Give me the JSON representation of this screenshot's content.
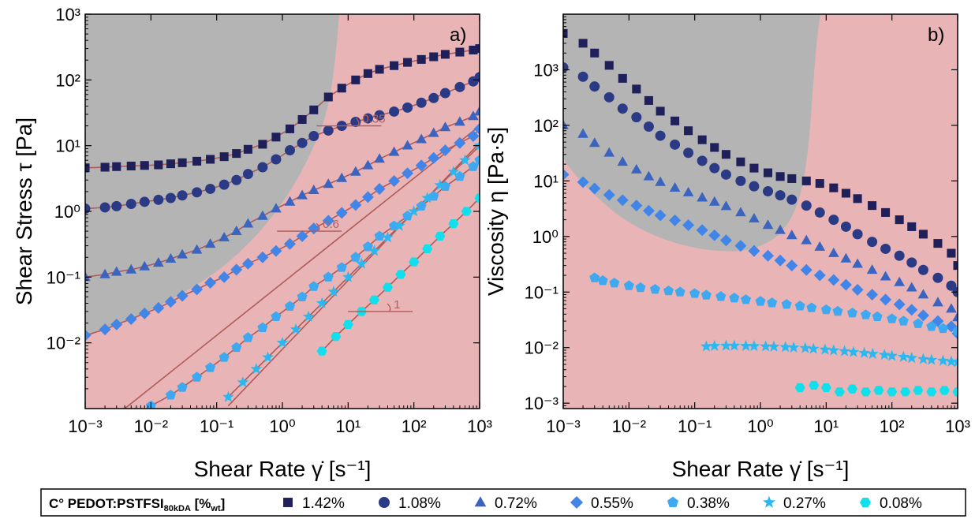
{
  "chart_data": [
    {
      "type": "scatter",
      "panel_label": "a)",
      "xlabel": "Shear Rate γ̇ [s⁻¹]",
      "ylabel": "Shear Stress τ [Pa]",
      "xscale": "log",
      "yscale": "log",
      "xlim": [
        0.001,
        1000
      ],
      "ylim": [
        0.001,
        1000
      ],
      "x_ticks": [
        "10⁻³",
        "10⁻²",
        "10⁻¹",
        "10⁰",
        "10¹",
        "10²",
        "10³"
      ],
      "y_ticks": [
        "10⁻²",
        "10⁻¹",
        "10⁰",
        "10¹",
        "10²",
        "10³"
      ],
      "annotations": [
        {
          "text": "0.35",
          "x": 10,
          "y": 20
        },
        {
          "text": "0.6",
          "x": 2.5,
          "y": 0.5
        },
        {
          "text": "1",
          "x": 30,
          "y": 0.03
        }
      ],
      "series": [
        {
          "name": "1.42%",
          "marker": "square",
          "color": "#1f1f5a",
          "x": [
            0.001,
            0.002,
            0.003,
            0.005,
            0.008,
            0.013,
            0.02,
            0.03,
            0.05,
            0.08,
            0.13,
            0.2,
            0.3,
            0.5,
            0.8,
            1.3,
            2,
            3,
            5,
            8,
            13,
            20,
            30,
            50,
            80,
            130,
            200,
            300,
            500,
            800,
            1000
          ],
          "y": [
            4.6,
            4.7,
            4.8,
            4.9,
            5.0,
            5.1,
            5.3,
            5.5,
            5.8,
            6.2,
            6.8,
            7.6,
            8.8,
            10.5,
            13.5,
            18,
            25,
            35,
            55,
            75,
            100,
            125,
            145,
            165,
            185,
            205,
            225,
            245,
            265,
            285,
            300
          ]
        },
        {
          "name": "1.08%",
          "marker": "circle",
          "color": "#2b3a84",
          "x": [
            0.001,
            0.002,
            0.003,
            0.005,
            0.008,
            0.013,
            0.02,
            0.03,
            0.05,
            0.08,
            0.13,
            0.2,
            0.3,
            0.5,
            0.8,
            1.3,
            2,
            3,
            5,
            8,
            13,
            20,
            30,
            50,
            80,
            130,
            200,
            300,
            500,
            800,
            1000
          ],
          "y": [
            1.1,
            1.15,
            1.2,
            1.3,
            1.4,
            1.5,
            1.6,
            1.75,
            1.95,
            2.2,
            2.55,
            3.0,
            3.7,
            4.7,
            6.2,
            8.5,
            11,
            14,
            17,
            20,
            23,
            26,
            29,
            33,
            38,
            45,
            53,
            63,
            78,
            95,
            110
          ]
        },
        {
          "name": "0.72%",
          "marker": "triangle",
          "color": "#3a64c0",
          "x": [
            0.001,
            0.002,
            0.003,
            0.005,
            0.008,
            0.013,
            0.02,
            0.03,
            0.05,
            0.08,
            0.13,
            0.2,
            0.3,
            0.5,
            0.8,
            1.3,
            2,
            3,
            5,
            8,
            13,
            20,
            30,
            50,
            80,
            130,
            200,
            300,
            500,
            800,
            1000
          ],
          "y": [
            0.1,
            0.11,
            0.12,
            0.13,
            0.145,
            0.165,
            0.19,
            0.22,
            0.26,
            0.32,
            0.4,
            0.5,
            0.65,
            0.85,
            1.1,
            1.4,
            1.75,
            2.1,
            2.6,
            3.2,
            4.0,
            5.0,
            6.3,
            8.0,
            10,
            12.5,
            15.5,
            19,
            23,
            28,
            33
          ]
        },
        {
          "name": "0.55%",
          "marker": "diamond",
          "color": "#4285e8",
          "x": [
            0.001,
            0.002,
            0.003,
            0.005,
            0.008,
            0.013,
            0.02,
            0.03,
            0.05,
            0.08,
            0.13,
            0.2,
            0.3,
            0.5,
            0.8,
            1.3,
            2,
            3,
            5,
            8,
            13,
            20,
            30,
            50,
            80,
            130,
            200,
            300,
            500,
            800,
            1000
          ],
          "y": [
            0.013,
            0.016,
            0.019,
            0.023,
            0.028,
            0.034,
            0.042,
            0.052,
            0.065,
            0.082,
            0.1,
            0.13,
            0.16,
            0.2,
            0.25,
            0.32,
            0.42,
            0.55,
            0.72,
            0.95,
            1.25,
            1.65,
            2.2,
            2.9,
            3.8,
            5.0,
            6.5,
            8.5,
            11,
            14,
            18
          ]
        },
        {
          "name": "0.38%",
          "marker": "pentagon",
          "color": "#3ea8f0",
          "x": [
            0.01,
            0.02,
            0.03,
            0.05,
            0.08,
            0.13,
            0.2,
            0.3,
            0.5,
            0.8,
            1.3,
            2,
            3,
            5,
            8,
            13,
            20,
            30,
            50,
            80,
            130,
            200,
            300,
            500,
            800,
            1000
          ],
          "y": [
            0.0011,
            0.0016,
            0.0021,
            0.003,
            0.0042,
            0.006,
            0.0085,
            0.012,
            0.017,
            0.025,
            0.036,
            0.05,
            0.072,
            0.1,
            0.14,
            0.2,
            0.29,
            0.42,
            0.6,
            0.85,
            1.2,
            1.7,
            2.4,
            3.4,
            4.8,
            6.0
          ]
        },
        {
          "name": "0.27%",
          "marker": "star",
          "color": "#2bb8f0",
          "x": [
            0.15,
            0.25,
            0.4,
            0.6,
            1,
            1.6,
            2.5,
            4,
            6,
            10,
            16,
            25,
            40,
            60,
            100,
            160,
            250,
            400,
            600,
            1000
          ],
          "y": [
            0.0015,
            0.0025,
            0.004,
            0.006,
            0.01,
            0.016,
            0.025,
            0.04,
            0.06,
            0.1,
            0.16,
            0.25,
            0.4,
            0.6,
            1.0,
            1.6,
            2.5,
            4.0,
            6.0,
            10
          ]
        },
        {
          "name": "0.08%",
          "marker": "hexagon",
          "color": "#11e0ec",
          "x": [
            4,
            6.5,
            10,
            16,
            25,
            40,
            63,
            100,
            160,
            250,
            400,
            630,
            1000
          ],
          "y": [
            0.0075,
            0.0125,
            0.019,
            0.03,
            0.045,
            0.07,
            0.11,
            0.17,
            0.27,
            0.42,
            0.65,
            1.0,
            1.6
          ]
        }
      ]
    },
    {
      "type": "scatter",
      "panel_label": "b)",
      "xlabel": "Shear Rate γ̇ [s⁻¹]",
      "ylabel": "Viscosity η [Pa·s]",
      "xscale": "log",
      "yscale": "log",
      "xlim": [
        0.001,
        1000
      ],
      "ylim": [
        0.0008,
        10000
      ],
      "x_ticks": [
        "10⁻³",
        "10⁻²",
        "10⁻¹",
        "10⁰",
        "10¹",
        "10²",
        "10³"
      ],
      "y_ticks": [
        "10⁻³",
        "10⁻²",
        "10⁻¹",
        "10⁰",
        "10¹",
        "10²",
        "10³"
      ],
      "series": [
        {
          "name": "1.42%",
          "marker": "square",
          "color": "#1f1f5a",
          "x": [
            0.001,
            0.002,
            0.003,
            0.005,
            0.008,
            0.013,
            0.02,
            0.03,
            0.05,
            0.08,
            0.13,
            0.2,
            0.3,
            0.5,
            0.8,
            1.3,
            2,
            3,
            5,
            8,
            13,
            20,
            30,
            50,
            80,
            130,
            200,
            300,
            500,
            800,
            1000
          ],
          "y": [
            4500,
            3000,
            2000,
            1200,
            700,
            450,
            280,
            180,
            120,
            80,
            55,
            40,
            30,
            22,
            17,
            14,
            12,
            11,
            10,
            9,
            7.5,
            6,
            4.8,
            3.6,
            2.7,
            2.0,
            1.5,
            1.1,
            0.75,
            0.5,
            0.3
          ]
        },
        {
          "name": "1.08%",
          "marker": "circle",
          "color": "#2b3a84",
          "x": [
            0.001,
            0.002,
            0.003,
            0.005,
            0.008,
            0.013,
            0.02,
            0.03,
            0.05,
            0.08,
            0.13,
            0.2,
            0.3,
            0.5,
            0.8,
            1.3,
            2,
            3,
            5,
            8,
            13,
            20,
            30,
            50,
            80,
            130,
            200,
            300,
            500,
            800,
            1000
          ],
          "y": [
            1100,
            750,
            500,
            320,
            200,
            140,
            95,
            65,
            45,
            32,
            23,
            17,
            13,
            10,
            8,
            6.5,
            5.5,
            4.6,
            3.6,
            2.7,
            2.0,
            1.5,
            1.1,
            0.8,
            0.6,
            0.45,
            0.34,
            0.25,
            0.18,
            0.13,
            0.1
          ]
        },
        {
          "name": "0.72%",
          "marker": "triangle",
          "color": "#3a64c0",
          "x": [
            0.001,
            0.002,
            0.003,
            0.005,
            0.008,
            0.013,
            0.02,
            0.03,
            0.05,
            0.08,
            0.13,
            0.2,
            0.3,
            0.5,
            0.8,
            1.3,
            2,
            3,
            5,
            8,
            13,
            20,
            30,
            50,
            80,
            130,
            200,
            300,
            500,
            800,
            1000
          ],
          "y": [
            100,
            70,
            48,
            32,
            22,
            16,
            12,
            9.5,
            7.5,
            6.2,
            5.0,
            4.2,
            3.5,
            2.7,
            2.1,
            1.6,
            1.3,
            1.05,
            0.85,
            0.65,
            0.5,
            0.4,
            0.32,
            0.25,
            0.19,
            0.15,
            0.12,
            0.09,
            0.065,
            0.05,
            0.035
          ]
        },
        {
          "name": "0.55%",
          "marker": "diamond",
          "color": "#4285e8",
          "x": [
            0.001,
            0.002,
            0.003,
            0.005,
            0.008,
            0.013,
            0.02,
            0.03,
            0.05,
            0.08,
            0.13,
            0.2,
            0.3,
            0.5,
            0.8,
            1.3,
            2,
            3,
            5,
            8,
            13,
            20,
            30,
            50,
            80,
            130,
            200,
            300,
            500,
            800,
            1000
          ],
          "y": [
            13,
            9.5,
            7.3,
            5.6,
            4.5,
            3.6,
            2.9,
            2.4,
            1.95,
            1.6,
            1.3,
            1.05,
            0.85,
            0.68,
            0.55,
            0.45,
            0.37,
            0.3,
            0.25,
            0.2,
            0.165,
            0.135,
            0.11,
            0.09,
            0.073,
            0.06,
            0.048,
            0.038,
            0.03,
            0.024,
            0.018
          ]
        },
        {
          "name": "0.38%",
          "marker": "pentagon",
          "color": "#3ea8f0",
          "x": [
            0.003,
            0.004,
            0.006,
            0.01,
            0.015,
            0.025,
            0.04,
            0.06,
            0.1,
            0.15,
            0.25,
            0.4,
            0.6,
            1,
            1.5,
            2.5,
            4,
            6,
            10,
            15,
            25,
            40,
            60,
            100,
            150,
            250,
            400,
            600,
            1000
          ],
          "y": [
            0.18,
            0.16,
            0.145,
            0.13,
            0.12,
            0.112,
            0.105,
            0.1,
            0.094,
            0.088,
            0.083,
            0.078,
            0.073,
            0.068,
            0.064,
            0.06,
            0.056,
            0.052,
            0.048,
            0.045,
            0.042,
            0.039,
            0.036,
            0.033,
            0.03,
            0.027,
            0.024,
            0.022,
            0.02
          ]
        },
        {
          "name": "0.27%",
          "marker": "star",
          "color": "#2bb8f0",
          "x": [
            0.15,
            0.2,
            0.3,
            0.4,
            0.6,
            0.8,
            1.2,
            1.6,
            2.4,
            3.2,
            4.8,
            6.4,
            9.6,
            13,
            19,
            26,
            38,
            51,
            77,
            100,
            150,
            200,
            300,
            400,
            600,
            800,
            1000
          ],
          "y": [
            0.0105,
            0.0107,
            0.0108,
            0.0108,
            0.0107,
            0.0106,
            0.0105,
            0.0104,
            0.0102,
            0.01,
            0.0098,
            0.0095,
            0.0092,
            0.0089,
            0.0086,
            0.0083,
            0.008,
            0.0077,
            0.0074,
            0.0071,
            0.0068,
            0.0065,
            0.0062,
            0.006,
            0.0058,
            0.0056,
            0.0055
          ]
        },
        {
          "name": "0.08%",
          "marker": "hexagon",
          "color": "#11e0ec",
          "x": [
            4,
            6.5,
            10,
            16,
            25,
            40,
            63,
            100,
            160,
            250,
            400,
            630,
            1000
          ],
          "y": [
            0.0019,
            0.0021,
            0.0019,
            0.0016,
            0.0018,
            0.0016,
            0.0017,
            0.0016,
            0.0016,
            0.0017,
            0.0016,
            0.0017,
            0.0016
          ]
        }
      ]
    }
  ],
  "legend": {
    "title_main": "C° PEDOT:PSTFSI",
    "title_sub": "80kDA",
    "title_unit_open": " [%",
    "title_unit_sub": "wt",
    "title_unit_close": "]",
    "entries": [
      {
        "label": "1.42%",
        "marker": "square",
        "color": "#1f1f5a"
      },
      {
        "label": "1.08%",
        "marker": "circle",
        "color": "#2b3a84"
      },
      {
        "label": "0.72%",
        "marker": "triangle",
        "color": "#3a64c0"
      },
      {
        "label": "0.55%",
        "marker": "diamond",
        "color": "#4285e8"
      },
      {
        "label": "0.38%",
        "marker": "pentagon",
        "color": "#3ea8f0"
      },
      {
        "label": "0.27%",
        "marker": "star",
        "color": "#2bb8f0"
      },
      {
        "label": "0.08%",
        "marker": "hexagon",
        "color": "#11e0ec"
      }
    ]
  },
  "colors": {
    "region_gray": "#b4b4b4",
    "region_pink": "#e8b4b6",
    "fit_line": "#b05a5a"
  }
}
